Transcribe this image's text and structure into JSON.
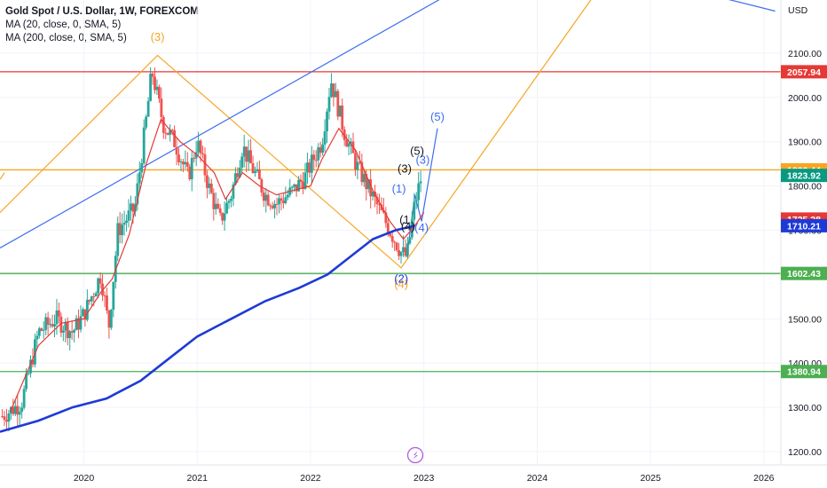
{
  "legend": {
    "title": "Gold Spot / U.S. Dollar, 1W, FOREXCOM",
    "ma20": "MA (20, close, 0, SMA, 5)",
    "ma200": "MA (200, close, 0, SMA, 5)"
  },
  "colors": {
    "ma20": "#e53935",
    "ma200": "#1e3ad6",
    "up": "#26a69a",
    "down": "#ef5350",
    "orange": "#f5a623",
    "blue_wave": "#3c6df0",
    "red_line": "#e53935",
    "green_line": "#4caf50",
    "trend_blue": "#3c6df0"
  },
  "chart_data": {
    "type": "candlestick",
    "currency_label": "USD",
    "ylim": [
      1170,
      2220
    ],
    "xlim": [
      2019.26,
      2026.15
    ],
    "x_ticks": [
      "2020",
      "2021",
      "2022",
      "2023",
      "2024",
      "2025",
      "2026"
    ],
    "y_ticks": [
      "2100.00",
      "2000.00",
      "1900.00",
      "1800.00",
      "1700.00",
      "1600.00",
      "1500.00",
      "1400.00",
      "1300.00",
      "1200.00"
    ],
    "price_path": [
      [
        2019.28,
        1280
      ],
      [
        2019.45,
        1310
      ],
      [
        2019.6,
        1470
      ],
      [
        2019.75,
        1500
      ],
      [
        2019.9,
        1470
      ],
      [
        2020.0,
        1510
      ],
      [
        2020.15,
        1600
      ],
      [
        2020.22,
        1480
      ],
      [
        2020.3,
        1700
      ],
      [
        2020.45,
        1750
      ],
      [
        2020.55,
        1950
      ],
      [
        2020.6,
        2060
      ],
      [
        2020.7,
        1940
      ],
      [
        2020.8,
        1900
      ],
      [
        2020.92,
        1820
      ],
      [
        2021.0,
        1900
      ],
      [
        2021.1,
        1800
      ],
      [
        2021.2,
        1720
      ],
      [
        2021.3,
        1780
      ],
      [
        2021.4,
        1890
      ],
      [
        2021.45,
        1860
      ],
      [
        2021.6,
        1780
      ],
      [
        2021.7,
        1760
      ],
      [
        2021.85,
        1790
      ],
      [
        2021.95,
        1820
      ],
      [
        2022.1,
        1900
      ],
      [
        2022.18,
        2040
      ],
      [
        2022.3,
        1920
      ],
      [
        2022.4,
        1850
      ],
      [
        2022.5,
        1800
      ],
      [
        2022.6,
        1750
      ],
      [
        2022.7,
        1700
      ],
      [
        2022.8,
        1650
      ],
      [
        2022.85,
        1640
      ],
      [
        2022.92,
        1760
      ],
      [
        2022.98,
        1823
      ]
    ],
    "ma20_path": [
      [
        2019.35,
        1290
      ],
      [
        2019.6,
        1440
      ],
      [
        2019.8,
        1490
      ],
      [
        2020.0,
        1500
      ],
      [
        2020.15,
        1560
      ],
      [
        2020.25,
        1590
      ],
      [
        2020.4,
        1690
      ],
      [
        2020.55,
        1850
      ],
      [
        2020.68,
        1950
      ],
      [
        2020.85,
        1900
      ],
      [
        2021.0,
        1870
      ],
      [
        2021.15,
        1830
      ],
      [
        2021.25,
        1770
      ],
      [
        2021.4,
        1830
      ],
      [
        2021.55,
        1800
      ],
      [
        2021.7,
        1780
      ],
      [
        2021.85,
        1790
      ],
      [
        2022.0,
        1800
      ],
      [
        2022.1,
        1860
      ],
      [
        2022.25,
        1930
      ],
      [
        2022.4,
        1880
      ],
      [
        2022.55,
        1790
      ],
      [
        2022.7,
        1720
      ],
      [
        2022.82,
        1680
      ],
      [
        2022.92,
        1710
      ],
      [
        2023.0,
        1740
      ]
    ],
    "ma200_path": [
      [
        2019.26,
        1245
      ],
      [
        2019.6,
        1270
      ],
      [
        2019.9,
        1300
      ],
      [
        2020.2,
        1320
      ],
      [
        2020.5,
        1360
      ],
      [
        2020.75,
        1410
      ],
      [
        2021.0,
        1460
      ],
      [
        2021.3,
        1500
      ],
      [
        2021.6,
        1540
      ],
      [
        2021.9,
        1570
      ],
      [
        2022.15,
        1600
      ],
      [
        2022.35,
        1640
      ],
      [
        2022.55,
        1680
      ],
      [
        2022.75,
        1700
      ],
      [
        2022.92,
        1710
      ]
    ],
    "horizontal_levels": [
      {
        "price": 2057.94,
        "label": "2057.94",
        "color": "#e53935"
      },
      {
        "price": 1836.44,
        "label": "1836.44",
        "color": "#f5a623"
      },
      {
        "price": 1823.92,
        "label": "1823.92",
        "color": "#089981"
      },
      {
        "price": 1725.28,
        "label": "1725.28",
        "color": "#e53935"
      },
      {
        "price": 1710.21,
        "label": "1710.21",
        "color": "#1e3ad6"
      },
      {
        "price": 1602.43,
        "label": "1602.43",
        "color": "#4caf50"
      },
      {
        "price": 1380.94,
        "label": "1380.94",
        "color": "#4caf50"
      }
    ],
    "trend_lines": [
      {
        "color": "#f5a623",
        "points": [
          [
            2019.26,
            1740
          ],
          [
            2020.65,
            2095
          ],
          [
            2022.8,
            1615
          ],
          [
            2024.5,
            2230
          ]
        ]
      },
      {
        "color": "#3c6df0",
        "points": [
          [
            2019.26,
            1660
          ],
          [
            2023.2,
            2230
          ]
        ]
      },
      {
        "color": "#3c6df0",
        "points": [
          [
            2025.55,
            2230
          ],
          [
            2026.1,
            2195
          ]
        ]
      },
      {
        "color": "#f5a623",
        "points": [
          [
            2019.26,
            1815
          ],
          [
            2019.3,
            1830
          ]
        ]
      }
    ],
    "wave_labels": [
      {
        "text": "(3)",
        "x": 2020.65,
        "y": 2128,
        "color": "#f5a623"
      },
      {
        "text": "(4)",
        "x": 2022.8,
        "y": 1570,
        "color": "#f5a623"
      },
      {
        "text": "(2)",
        "x": 2022.8,
        "y": 1582,
        "color": "#1e3ad6"
      },
      {
        "text": "(1)",
        "x": 2022.78,
        "y": 1785,
        "color": "#3c6df0"
      },
      {
        "text": "(3)",
        "x": 2022.99,
        "y": 1850,
        "color": "#3c6df0"
      },
      {
        "text": "(4)",
        "x": 2022.98,
        "y": 1697,
        "color": "#3c6df0"
      },
      {
        "text": "(5)",
        "x": 2023.12,
        "y": 1947,
        "color": "#3c6df0"
      },
      {
        "text": "(3)",
        "x": 2022.83,
        "y": 1830,
        "color": "#131722"
      },
      {
        "text": "(5)",
        "x": 2022.94,
        "y": 1870,
        "color": "#131722"
      },
      {
        "text": "(1",
        "x": 2022.83,
        "y": 1715,
        "color": "#131722"
      },
      {
        "text": "(4)",
        "x": 2022.86,
        "y": 1700,
        "color": "#131722"
      }
    ],
    "projection_path": [
      [
        2022.85,
        1640
      ],
      [
        2022.92,
        1780
      ],
      [
        2022.98,
        1720
      ],
      [
        2023.12,
        1930
      ]
    ]
  }
}
